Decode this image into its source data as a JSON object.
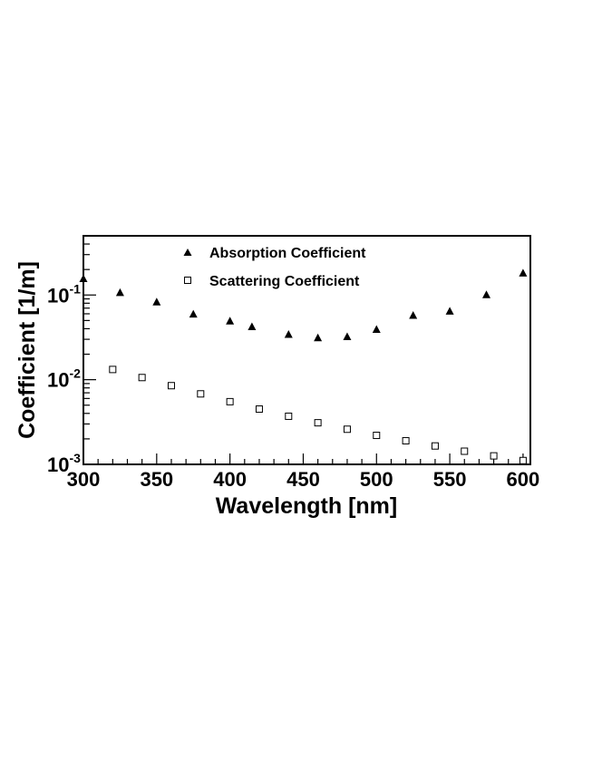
{
  "chart_data": {
    "type": "scatter",
    "xlabel": "Wavelength [nm]",
    "ylabel": "Coefficient [1/m]",
    "xlim": [
      300,
      605
    ],
    "ylim": [
      0.001,
      0.5
    ],
    "y_scale": "log",
    "grid": false,
    "legend_position": "top-left",
    "x_ticks": [
      "300",
      "350",
      "400",
      "450",
      "500",
      "550",
      "600"
    ],
    "y_ticks": [
      {
        "value": 0.1,
        "base": "10",
        "exp": "-1"
      },
      {
        "value": 0.01,
        "base": "10",
        "exp": "-2"
      },
      {
        "value": 0.001,
        "base": "10",
        "exp": "-3"
      }
    ],
    "series": [
      {
        "name": "Absorption Coefficient",
        "marker": "filled-triangle",
        "color": "#000000",
        "x": [
          300,
          325,
          350,
          375,
          400,
          415,
          440,
          460,
          480,
          500,
          525,
          550,
          575,
          600
        ],
        "y": [
          0.155,
          0.106,
          0.082,
          0.059,
          0.049,
          0.042,
          0.034,
          0.031,
          0.032,
          0.039,
          0.057,
          0.064,
          0.1,
          0.18
        ]
      },
      {
        "name": "Scattering Coefficient",
        "marker": "open-square",
        "color": "#000000",
        "x": [
          320,
          340,
          360,
          380,
          400,
          420,
          440,
          460,
          480,
          500,
          520,
          540,
          560,
          580,
          600
        ],
        "y": [
          0.0132,
          0.0106,
          0.0085,
          0.0068,
          0.0055,
          0.0045,
          0.0037,
          0.0031,
          0.0026,
          0.0022,
          0.0019,
          0.00165,
          0.00143,
          0.00126,
          0.00111
        ]
      }
    ]
  }
}
